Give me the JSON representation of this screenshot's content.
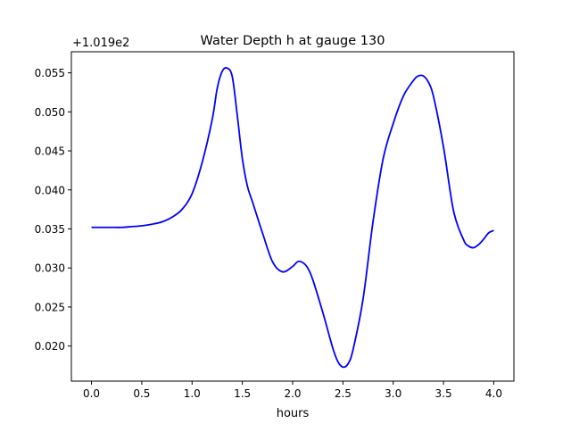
{
  "chart_data": {
    "type": "line",
    "title": "Water Depth h at gauge 130",
    "xlabel": "hours",
    "ylabel": "",
    "offset_label": "+1.019e2",
    "xlim": [
      -0.2,
      4.2
    ],
    "ylim": [
      0.0155,
      0.0577
    ],
    "xticks": [
      0.0,
      0.5,
      1.0,
      1.5,
      2.0,
      2.5,
      3.0,
      3.5,
      4.0
    ],
    "xtick_labels": [
      "0.0",
      "0.5",
      "1.0",
      "1.5",
      "2.0",
      "2.5",
      "3.0",
      "3.5",
      "4.0"
    ],
    "yticks": [
      0.02,
      0.025,
      0.03,
      0.035,
      0.04,
      0.045,
      0.05,
      0.055
    ],
    "ytick_labels": [
      "0.020",
      "0.025",
      "0.030",
      "0.035",
      "0.040",
      "0.045",
      "0.050",
      "0.055"
    ],
    "grid": false,
    "series": [
      {
        "color": "#0000ff",
        "x": [
          0.0,
          0.1,
          0.2,
          0.3,
          0.4,
          0.5,
          0.6,
          0.7,
          0.8,
          0.9,
          1.0,
          1.1,
          1.2,
          1.25,
          1.3,
          1.35,
          1.4,
          1.45,
          1.5,
          1.55,
          1.6,
          1.7,
          1.8,
          1.9,
          2.0,
          2.05,
          2.1,
          2.15,
          2.2,
          2.3,
          2.4,
          2.45,
          2.5,
          2.55,
          2.6,
          2.7,
          2.8,
          2.9,
          3.0,
          3.1,
          3.2,
          3.25,
          3.3,
          3.35,
          3.4,
          3.5,
          3.6,
          3.7,
          3.75,
          3.8,
          3.85,
          3.9,
          3.95,
          4.0
        ],
        "y": [
          0.0352,
          0.0352,
          0.0352,
          0.0352,
          0.0353,
          0.0354,
          0.0356,
          0.0359,
          0.0365,
          0.0375,
          0.0395,
          0.0435,
          0.049,
          0.053,
          0.0552,
          0.0556,
          0.0545,
          0.0495,
          0.044,
          0.0405,
          0.0385,
          0.0345,
          0.0308,
          0.0295,
          0.0302,
          0.0308,
          0.0307,
          0.03,
          0.0285,
          0.0243,
          0.0197,
          0.018,
          0.0173,
          0.0177,
          0.0195,
          0.026,
          0.036,
          0.044,
          0.0485,
          0.052,
          0.054,
          0.0546,
          0.0546,
          0.0538,
          0.052,
          0.0455,
          0.0373,
          0.0336,
          0.0328,
          0.0326,
          0.033,
          0.0337,
          0.0345,
          0.0348
        ]
      }
    ]
  }
}
